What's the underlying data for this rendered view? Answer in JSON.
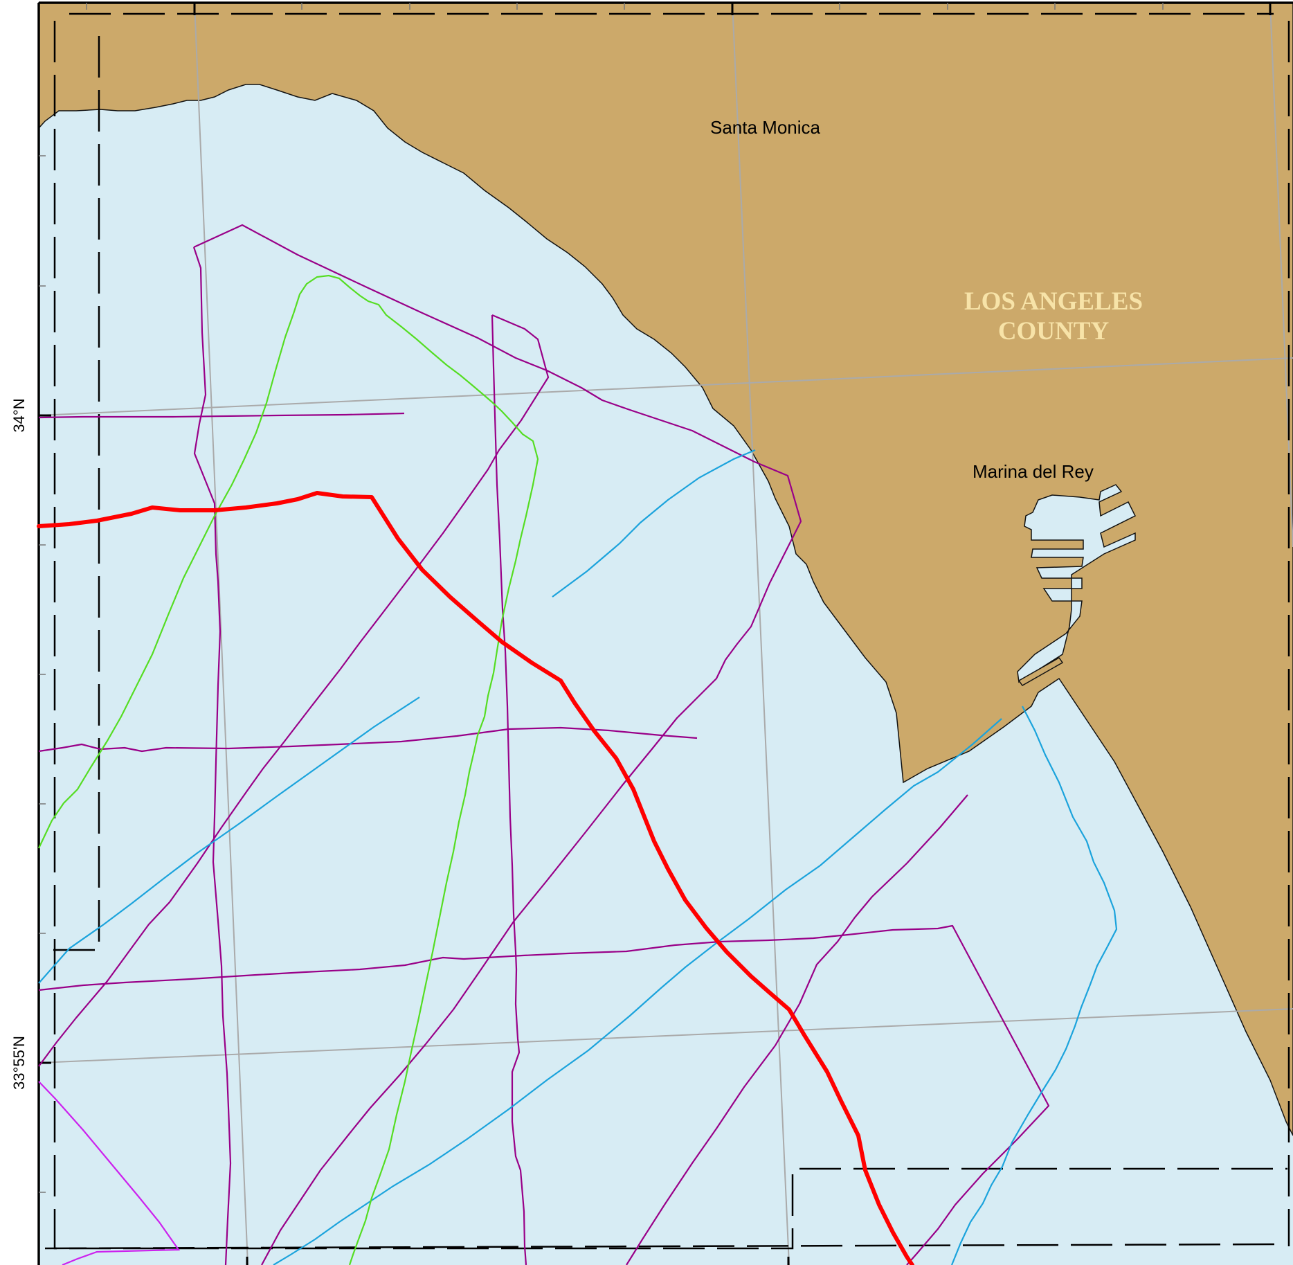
{
  "map": {
    "labels": {
      "lat_34": "34°N",
      "lat_3355": "33°55'N",
      "santa_monica": "Santa Monica",
      "marina_del_rey": "Marina del Rey",
      "county_line1": "LOS ANGELES",
      "county_line2": "COUNTY"
    },
    "colors": {
      "water": "#d7ecf4",
      "land": "#cca96a",
      "graticule": "#aaaaaa",
      "primary_track": "#ff0000",
      "purple_tracks": "#990088",
      "blue_tracks": "#1ba3dc",
      "green_track": "#55dd22",
      "magenta_track": "#cc22ee",
      "county_text": "#f7e3a8"
    }
  }
}
